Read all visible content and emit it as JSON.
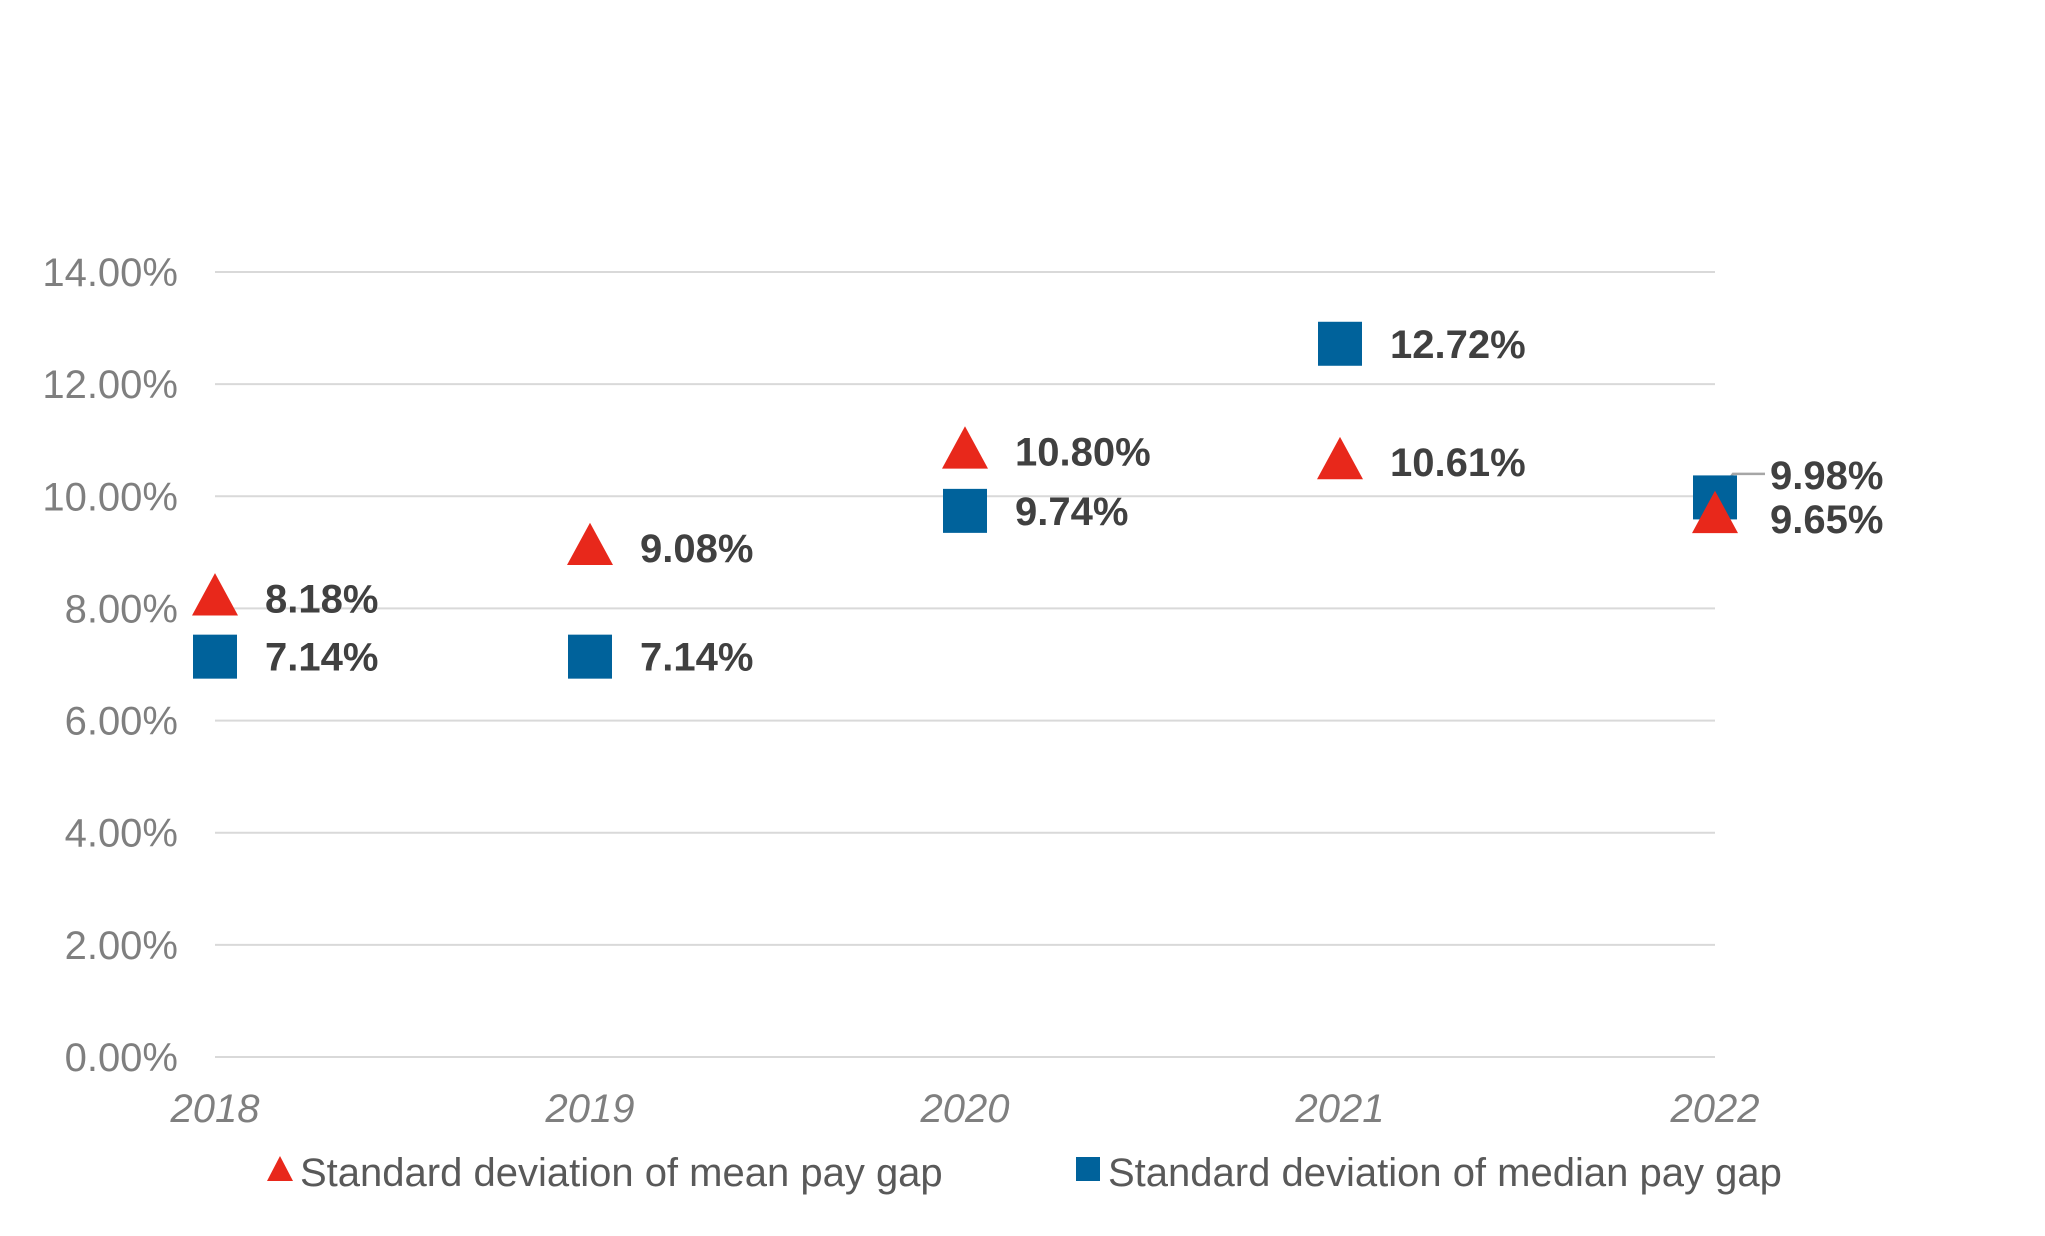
{
  "chart_data": {
    "type": "scatter",
    "title": "",
    "xlabel": "",
    "ylabel": "",
    "categories": [
      "2018",
      "2019",
      "2020",
      "2021",
      "2022"
    ],
    "ylim": [
      0,
      14
    ],
    "yticks": [
      "0.00%",
      "2.00%",
      "4.00%",
      "6.00%",
      "8.00%",
      "10.00%",
      "12.00%",
      "14.00%"
    ],
    "grid": true,
    "legend_position": "bottom",
    "series": [
      {
        "name": "Standard deviation of mean pay gap",
        "marker": "triangle",
        "color": "#e8281b",
        "values": [
          8.18,
          9.08,
          10.8,
          10.61,
          9.65
        ],
        "labels": [
          "8.18%",
          "9.08%",
          "10.80%",
          "10.61%",
          "9.65%"
        ]
      },
      {
        "name": "Standard deviation of median pay gap",
        "marker": "square",
        "color": "#00629b",
        "values": [
          7.14,
          7.14,
          9.74,
          12.72,
          9.98
        ],
        "labels": [
          "7.14%",
          "7.14%",
          "9.74%",
          "12.72%",
          "9.98%"
        ]
      }
    ]
  }
}
